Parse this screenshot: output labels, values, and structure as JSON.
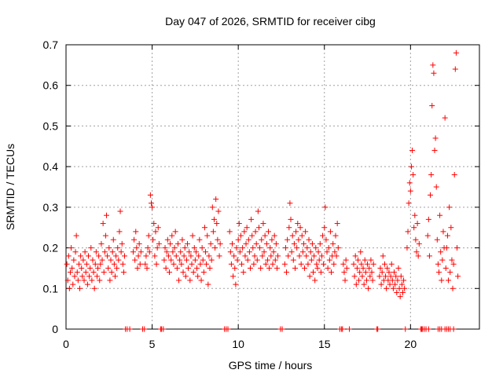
{
  "chart_data": {
    "type": "scatter",
    "title": "Day 047 of 2026, SRMTID for receiver cibg",
    "xlabel": "GPS time / hours",
    "ylabel": "SRMTID / TECUs",
    "xlim": [
      0,
      24
    ],
    "ylim": [
      0,
      0.7
    ],
    "grid": true,
    "marker": "+",
    "color": "#ff0000",
    "x_ticks": [
      0,
      5,
      10,
      15,
      20
    ],
    "x_tick_labels": [
      "0",
      "5",
      "10",
      "15",
      "20"
    ],
    "y_ticks": [
      0,
      0.1,
      0.2,
      0.3,
      0.4,
      0.5,
      0.6,
      0.7
    ],
    "y_tick_labels": [
      "0",
      "0.1",
      "0.2",
      "0.3",
      "0.4",
      "0.5",
      "0.6",
      "0.7"
    ],
    "series": [
      {
        "name": "SRMTID",
        "x": [
          0.05,
          0.1,
          0.15,
          0.2,
          0.25,
          0.3,
          0.35,
          0.4,
          0.45,
          0.5,
          0.55,
          0.6,
          0.65,
          0.7,
          0.75,
          0.8,
          0.85,
          0.9,
          0.95,
          1.0,
          1.05,
          1.1,
          1.15,
          1.2,
          1.25,
          1.3,
          1.35,
          1.4,
          1.45,
          1.5,
          1.55,
          1.6,
          1.65,
          1.7,
          1.75,
          1.8,
          1.85,
          1.9,
          1.95,
          2.0,
          2.05,
          2.1,
          2.15,
          2.2,
          2.25,
          2.3,
          2.35,
          2.4,
          2.45,
          2.5,
          2.55,
          2.6,
          2.65,
          2.7,
          2.75,
          2.8,
          2.85,
          2.9,
          2.95,
          3.0,
          3.05,
          3.1,
          3.15,
          3.2,
          3.25,
          3.3,
          3.35,
          3.4,
          3.9,
          3.95,
          4.0,
          4.05,
          4.1,
          4.15,
          4.2,
          4.25,
          4.3,
          4.35,
          4.6,
          4.65,
          4.7,
          4.75,
          4.8,
          4.85,
          4.9,
          4.95,
          5.0,
          5.05,
          5.1,
          5.15,
          5.2,
          5.25,
          5.3,
          5.35,
          5.4,
          5.7,
          5.75,
          5.8,
          5.85,
          5.9,
          5.95,
          6.0,
          6.05,
          6.1,
          6.15,
          6.2,
          6.25,
          6.3,
          6.35,
          6.4,
          6.45,
          6.5,
          6.55,
          6.6,
          6.65,
          6.7,
          6.75,
          6.8,
          6.85,
          6.9,
          6.95,
          7.0,
          7.05,
          7.1,
          7.15,
          7.2,
          7.25,
          7.3,
          7.35,
          7.4,
          7.45,
          7.5,
          7.55,
          7.6,
          7.65,
          7.7,
          7.75,
          7.8,
          7.85,
          7.9,
          7.95,
          8.0,
          8.05,
          8.1,
          8.15,
          8.2,
          8.25,
          8.3,
          8.35,
          8.4,
          8.45,
          8.5,
          8.55,
          8.6,
          8.65,
          8.7,
          8.75,
          8.8,
          8.85,
          8.9,
          8.95,
          9.5,
          9.55,
          9.6,
          9.65,
          9.7,
          9.75,
          9.8,
          9.85,
          9.9,
          9.95,
          10.0,
          10.05,
          10.1,
          10.15,
          10.2,
          10.25,
          10.3,
          10.35,
          10.4,
          10.45,
          10.5,
          10.55,
          10.6,
          10.65,
          10.7,
          10.75,
          10.8,
          10.85,
          10.9,
          10.95,
          11.0,
          11.05,
          11.1,
          11.15,
          11.2,
          11.25,
          11.3,
          11.35,
          11.4,
          11.45,
          11.5,
          11.55,
          11.6,
          11.65,
          11.7,
          11.75,
          11.8,
          11.85,
          11.9,
          11.95,
          12.0,
          12.05,
          12.1,
          12.15,
          12.2,
          12.25,
          12.3,
          12.7,
          12.75,
          12.8,
          12.85,
          12.9,
          12.95,
          13.0,
          13.05,
          13.1,
          13.15,
          13.2,
          13.25,
          13.3,
          13.35,
          13.4,
          13.45,
          13.5,
          13.55,
          13.6,
          13.65,
          13.7,
          13.75,
          13.8,
          13.85,
          13.9,
          13.95,
          14.0,
          14.05,
          14.1,
          14.15,
          14.2,
          14.25,
          14.3,
          14.35,
          14.4,
          14.45,
          14.5,
          14.55,
          14.6,
          14.65,
          14.7,
          14.75,
          14.8,
          14.85,
          14.9,
          14.95,
          15.0,
          15.05,
          15.1,
          15.15,
          15.2,
          15.25,
          15.3,
          15.35,
          15.4,
          15.45,
          15.5,
          15.55,
          15.6,
          15.65,
          15.7,
          15.75,
          15.8,
          16.1,
          16.15,
          16.2,
          16.25,
          16.3,
          16.7,
          16.75,
          16.8,
          16.85,
          16.9,
          16.95,
          17.0,
          17.05,
          17.1,
          17.15,
          17.2,
          17.25,
          17.3,
          17.35,
          17.4,
          17.45,
          17.5,
          17.55,
          17.6,
          17.65,
          17.7,
          17.75,
          17.8,
          17.85,
          18.2,
          18.25,
          18.3,
          18.35,
          18.4,
          18.45,
          18.5,
          18.55,
          18.6,
          18.65,
          18.7,
          18.75,
          18.8,
          18.85,
          18.9,
          18.95,
          19.0,
          19.05,
          19.1,
          19.15,
          19.2,
          19.25,
          19.3,
          19.35,
          19.4,
          19.45,
          19.5,
          19.55,
          19.6,
          19.65,
          19.8,
          19.85,
          19.9,
          19.95,
          20.0,
          20.05,
          20.1,
          20.15,
          20.2,
          20.25,
          20.3,
          20.35,
          20.4,
          20.45,
          20.5,
          21.0,
          21.05,
          21.1,
          21.15,
          21.2,
          21.25,
          21.3,
          21.35,
          21.4,
          21.45,
          21.5,
          21.55,
          21.6,
          21.65,
          21.7,
          21.75,
          21.8,
          21.85,
          21.9,
          21.95,
          22.0,
          22.05,
          22.1,
          22.15,
          22.2,
          22.25,
          22.3,
          22.35,
          22.4,
          22.45,
          22.5,
          22.55,
          22.6,
          22.65,
          22.7,
          22.75,
          3.45,
          3.55,
          3.7,
          4.45,
          4.55,
          5.5,
          5.55,
          5.65,
          9.2,
          9.3,
          9.4,
          12.45,
          12.55,
          15.9,
          16.0,
          16.05,
          16.45,
          18.05,
          18.1,
          19.7,
          20.6,
          20.65,
          20.7,
          20.8,
          20.9,
          21.05,
          21.6,
          21.7,
          21.8,
          22.0,
          22.1,
          22.2,
          22.3,
          22.5
        ],
        "y": [
          0.16,
          0.12,
          0.18,
          0.1,
          0.14,
          0.2,
          0.15,
          0.11,
          0.17,
          0.13,
          0.19,
          0.23,
          0.14,
          0.12,
          0.16,
          0.1,
          0.18,
          0.15,
          0.13,
          0.17,
          0.12,
          0.19,
          0.14,
          0.16,
          0.11,
          0.18,
          0.13,
          0.15,
          0.2,
          0.12,
          0.17,
          0.14,
          0.1,
          0.16,
          0.19,
          0.13,
          0.15,
          0.18,
          0.12,
          0.16,
          0.21,
          0.17,
          0.26,
          0.14,
          0.19,
          0.23,
          0.28,
          0.18,
          0.15,
          0.2,
          0.12,
          0.17,
          0.14,
          0.19,
          0.22,
          0.16,
          0.13,
          0.18,
          0.15,
          0.2,
          0.17,
          0.24,
          0.29,
          0.19,
          0.21,
          0.16,
          0.14,
          0.18,
          0.19,
          0.22,
          0.17,
          0.24,
          0.2,
          0.15,
          0.18,
          0.21,
          0.16,
          0.19,
          0.16,
          0.18,
          0.15,
          0.2,
          0.23,
          0.19,
          0.33,
          0.31,
          0.3,
          0.22,
          0.26,
          0.18,
          0.24,
          0.16,
          0.2,
          0.25,
          0.21,
          0.17,
          0.2,
          0.15,
          0.19,
          0.22,
          0.18,
          0.14,
          0.21,
          0.17,
          0.23,
          0.19,
          0.16,
          0.2,
          0.24,
          0.18,
          0.15,
          0.21,
          0.12,
          0.17,
          0.19,
          0.16,
          0.22,
          0.14,
          0.18,
          0.2,
          0.13,
          0.17,
          0.21,
          0.15,
          0.19,
          0.12,
          0.18,
          0.16,
          0.23,
          0.14,
          0.2,
          0.17,
          0.19,
          0.15,
          0.13,
          0.18,
          0.22,
          0.16,
          0.12,
          0.2,
          0.17,
          0.14,
          0.25,
          0.19,
          0.16,
          0.23,
          0.11,
          0.18,
          0.15,
          0.21,
          0.17,
          0.3,
          0.24,
          0.27,
          0.2,
          0.32,
          0.26,
          0.22,
          0.29,
          0.18,
          0.21,
          0.24,
          0.19,
          0.16,
          0.21,
          0.13,
          0.18,
          0.15,
          0.11,
          0.2,
          0.17,
          0.22,
          0.26,
          0.19,
          0.23,
          0.16,
          0.2,
          0.14,
          0.24,
          0.18,
          0.21,
          0.25,
          0.17,
          0.22,
          0.19,
          0.15,
          0.27,
          0.23,
          0.2,
          0.16,
          0.18,
          0.24,
          0.21,
          0.17,
          0.29,
          0.25,
          0.2,
          0.15,
          0.22,
          0.18,
          0.26,
          0.19,
          0.23,
          0.16,
          0.21,
          0.17,
          0.24,
          0.15,
          0.2,
          0.18,
          0.22,
          0.16,
          0.19,
          0.23,
          0.17,
          0.21,
          0.15,
          0.18,
          0.16,
          0.2,
          0.14,
          0.22,
          0.18,
          0.25,
          0.31,
          0.27,
          0.19,
          0.23,
          0.17,
          0.21,
          0.15,
          0.24,
          0.2,
          0.26,
          0.22,
          0.18,
          0.25,
          0.16,
          0.23,
          0.19,
          0.21,
          0.15,
          0.24,
          0.18,
          0.2,
          0.16,
          0.22,
          0.13,
          0.19,
          0.17,
          0.21,
          0.14,
          0.18,
          0.12,
          0.2,
          0.16,
          0.15,
          0.19,
          0.17,
          0.21,
          0.14,
          0.18,
          0.23,
          0.16,
          0.25,
          0.3,
          0.22,
          0.19,
          0.15,
          0.2,
          0.17,
          0.24,
          0.14,
          0.18,
          0.21,
          0.16,
          0.19,
          0.23,
          0.18,
          0.26,
          0.2,
          0.16,
          0.14,
          0.12,
          0.17,
          0.15,
          0.16,
          0.13,
          0.18,
          0.11,
          0.15,
          0.17,
          0.12,
          0.14,
          0.19,
          0.16,
          0.13,
          0.15,
          0.11,
          0.17,
          0.14,
          0.12,
          0.16,
          0.1,
          0.15,
          0.13,
          0.17,
          0.14,
          0.12,
          0.16,
          0.13,
          0.15,
          0.11,
          0.14,
          0.18,
          0.12,
          0.16,
          0.13,
          0.1,
          0.15,
          0.12,
          0.14,
          0.11,
          0.13,
          0.16,
          0.12,
          0.1,
          0.14,
          0.11,
          0.13,
          0.09,
          0.12,
          0.15,
          0.1,
          0.08,
          0.13,
          0.11,
          0.09,
          0.12,
          0.1,
          0.2,
          0.24,
          0.31,
          0.36,
          0.34,
          0.4,
          0.44,
          0.38,
          0.25,
          0.28,
          0.22,
          0.19,
          0.26,
          0.18,
          0.21,
          0.23,
          0.27,
          0.18,
          0.33,
          0.38,
          0.55,
          0.65,
          0.63,
          0.44,
          0.47,
          0.35,
          0.22,
          0.16,
          0.14,
          0.28,
          0.19,
          0.12,
          0.17,
          0.24,
          0.2,
          0.52,
          0.15,
          0.2,
          0.23,
          0.12,
          0.3,
          0.14,
          0.25,
          0.17,
          0.1,
          0.16,
          0.38,
          0.64,
          0.68,
          0.2,
          0.13,
          0.0,
          0.0,
          0.0,
          0.0,
          0.0,
          0.0,
          0.0,
          0.0,
          0.0,
          0.0,
          0.0,
          0.0,
          0.0,
          0.0,
          0.0,
          0.0,
          0.0,
          0.0,
          0.0,
          0.0,
          0.0,
          0.0,
          0.0,
          0.0,
          0.0,
          0.0,
          0.0,
          0.0,
          0.0,
          0.0,
          0.0,
          0.0,
          0.0,
          0.0
        ]
      }
    ]
  }
}
